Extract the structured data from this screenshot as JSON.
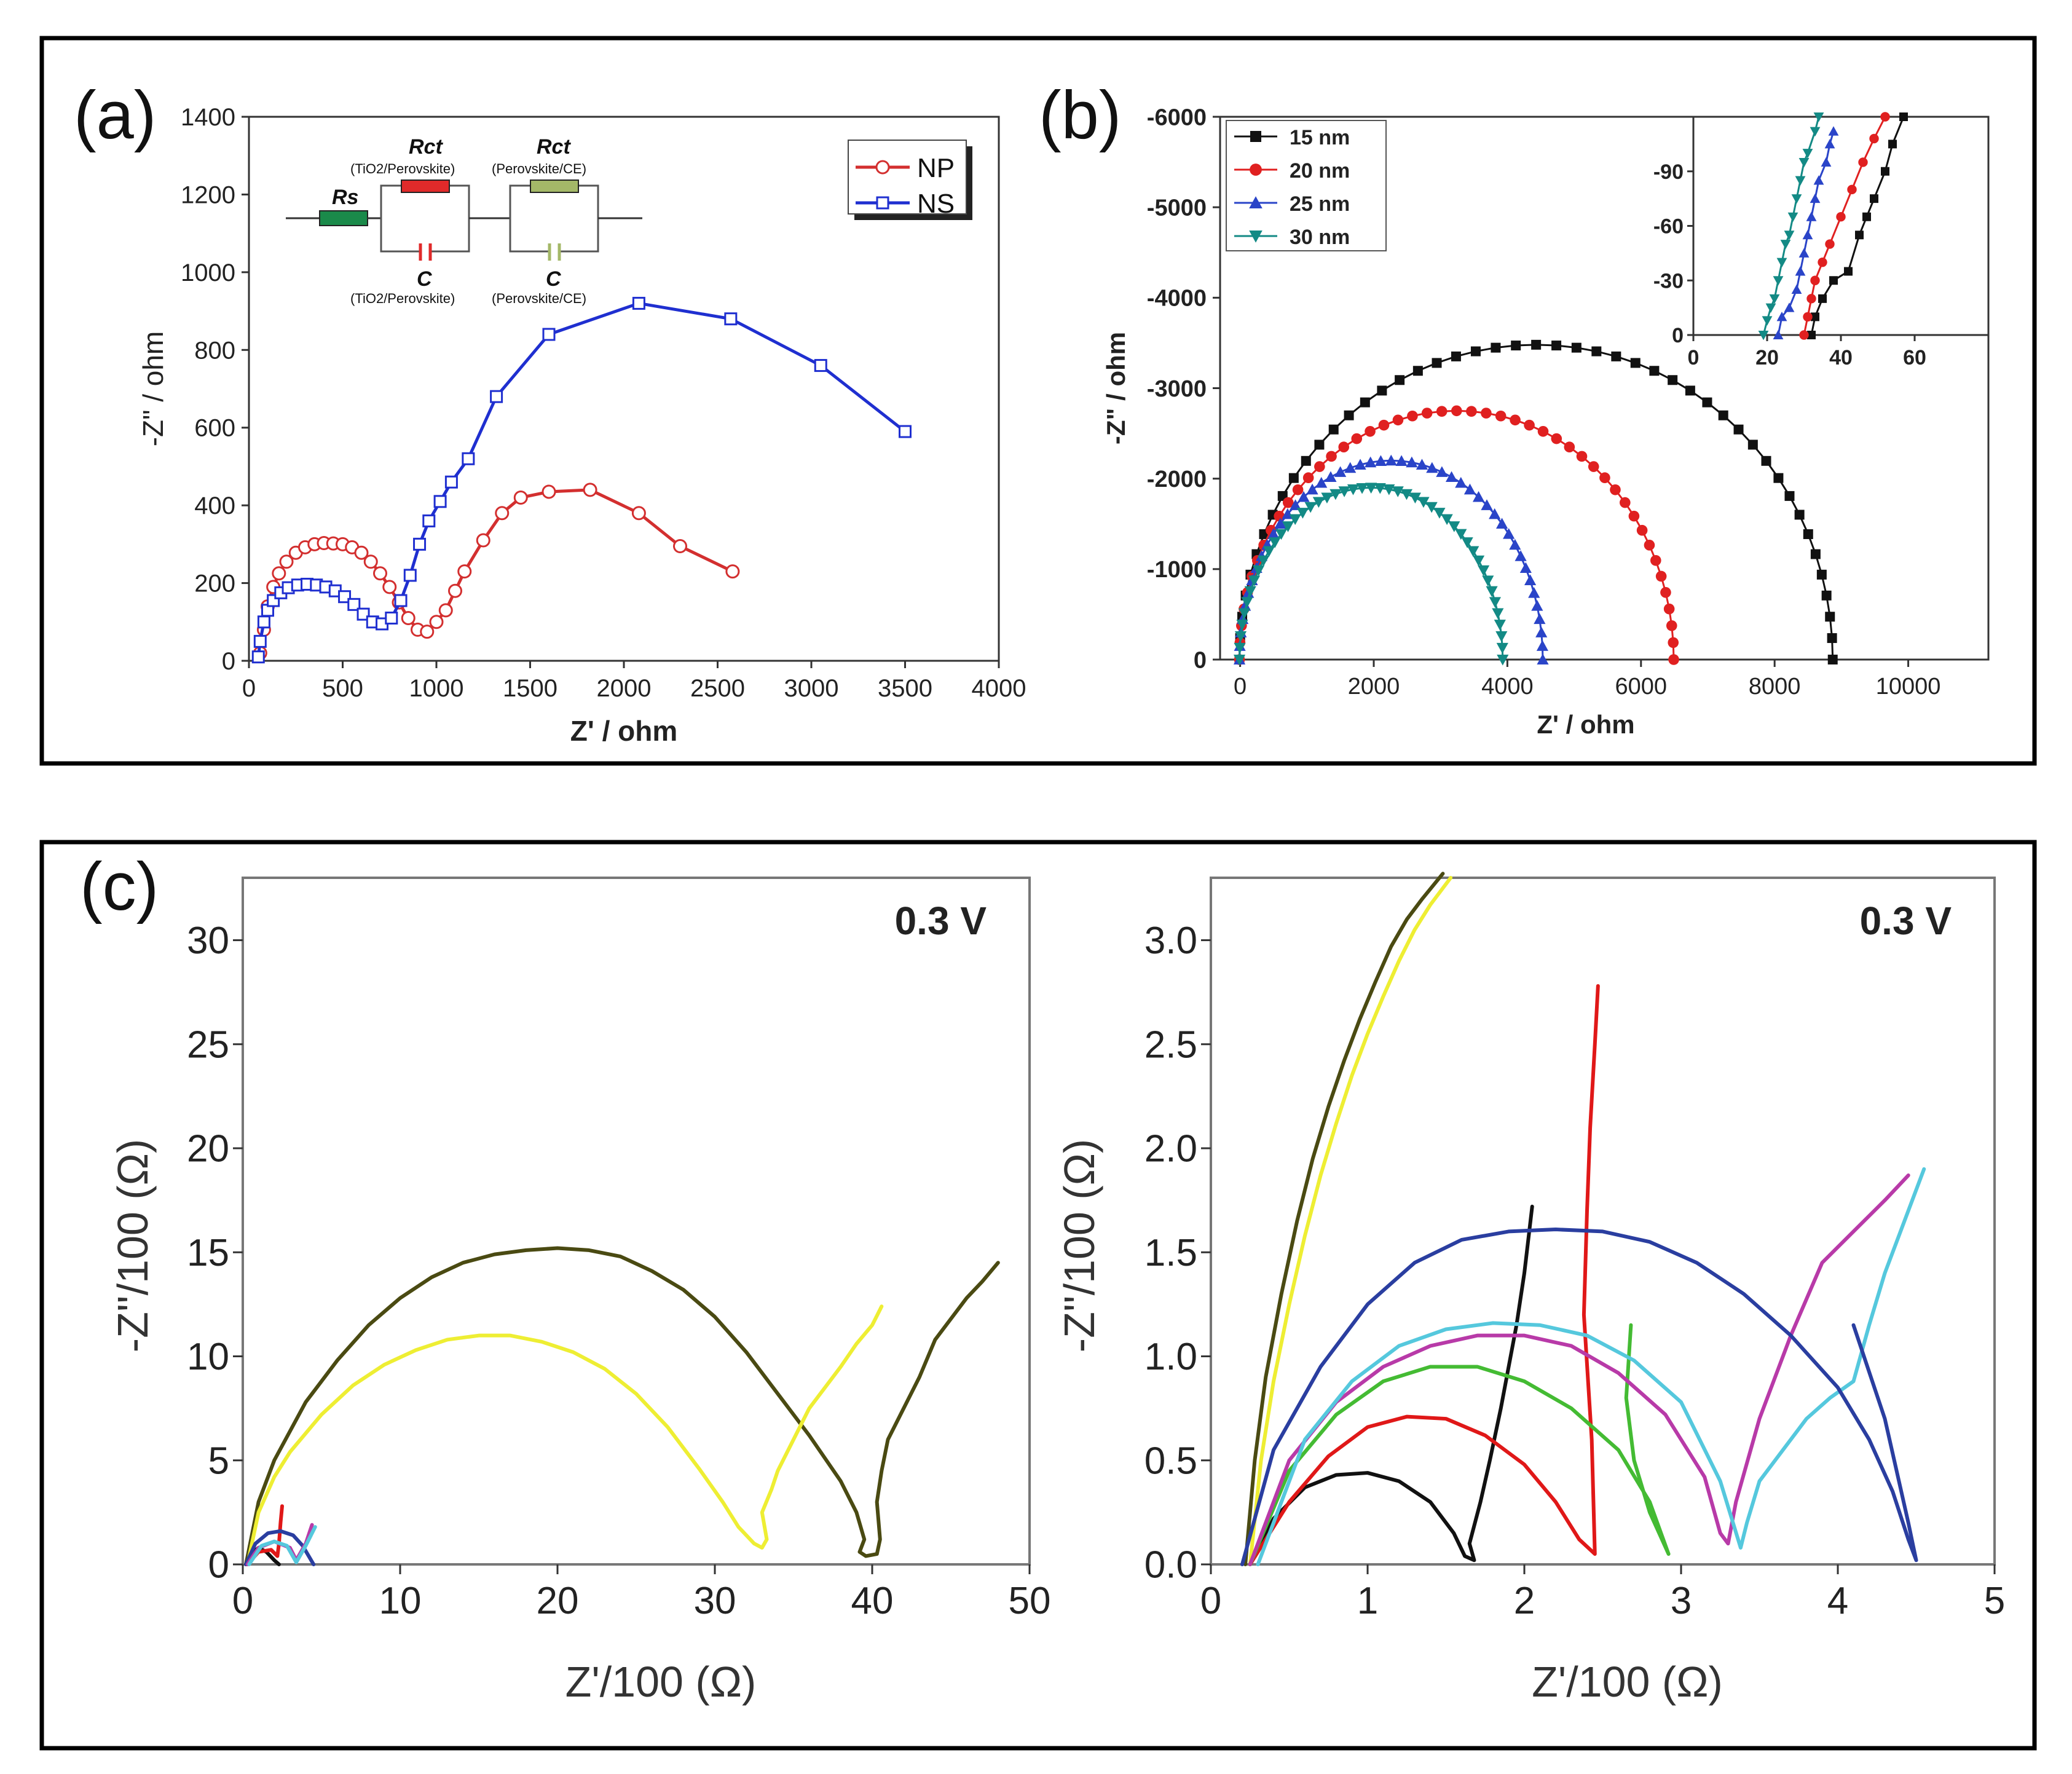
{
  "colors": {
    "np": "#d32f2f",
    "ns": "#1f2fd0",
    "s15": "#111111",
    "s20": "#e02020",
    "s25": "#2a44c8",
    "s30": "#138a85",
    "olive": "#4a4a12",
    "yellow": "#eeee33",
    "black": "#111111",
    "red": "#e01818",
    "green": "#44bb33",
    "magenta": "#b83aa8",
    "cyan": "#55c8dd",
    "navy": "#2a3ea0"
  },
  "panels": {
    "a": {
      "letter": "(a)"
    },
    "b": {
      "letter": "(b)"
    },
    "c": {
      "letter": "(c)"
    }
  },
  "circuit": {
    "rs": "Rs",
    "rct1": "Rct",
    "rct1_sub": "(TiO2/Perovskite)",
    "rct2": "Rct",
    "rct2_sub": "(Perovskite/CE)",
    "c1": "C",
    "c1_sub": "(TiO2/Perovskite)",
    "c2": "C",
    "c2_sub": "(Perovskite/CE)"
  },
  "chart_data": [
    {
      "id": "a",
      "type": "scatter",
      "xlabel": "Z' / ohm",
      "ylabel": "-Z\" / ohm",
      "xlim": [
        0,
        4000
      ],
      "ylim": [
        0,
        1400
      ],
      "xticks": [
        0,
        500,
        1000,
        1500,
        2000,
        2500,
        3000,
        3500,
        4000
      ],
      "yticks": [
        0,
        200,
        400,
        600,
        800,
        1000,
        1200,
        1400
      ],
      "legend": "top-right",
      "series": [
        {
          "name": "NP",
          "color": "#d32f2f",
          "marker": "circle-open",
          "x": [
            60,
            80,
            100,
            130,
            160,
            200,
            250,
            300,
            350,
            400,
            450,
            500,
            550,
            600,
            650,
            700,
            750,
            800,
            850,
            900,
            950,
            1000,
            1050,
            1100,
            1150,
            1250,
            1350,
            1450,
            1600,
            1820,
            2080,
            2300,
            2580
          ],
          "y": [
            20,
            80,
            140,
            190,
            225,
            255,
            278,
            292,
            300,
            303,
            302,
            300,
            292,
            278,
            255,
            225,
            190,
            150,
            110,
            80,
            75,
            100,
            130,
            180,
            230,
            310,
            380,
            420,
            435,
            440,
            380,
            295,
            230
          ]
        },
        {
          "name": "NS",
          "color": "#1f2fd0",
          "marker": "square-open",
          "x": [
            50,
            60,
            80,
            100,
            130,
            170,
            210,
            260,
            310,
            360,
            410,
            460,
            510,
            560,
            610,
            660,
            710,
            760,
            810,
            860,
            910,
            960,
            1020,
            1080,
            1170,
            1320,
            1600,
            2080,
            2570,
            3050,
            3500
          ],
          "y": [
            10,
            50,
            100,
            130,
            155,
            175,
            188,
            195,
            197,
            195,
            190,
            180,
            165,
            145,
            120,
            100,
            95,
            110,
            155,
            220,
            300,
            360,
            410,
            460,
            520,
            680,
            840,
            920,
            880,
            760,
            590
          ]
        }
      ]
    },
    {
      "id": "b",
      "type": "line",
      "xlabel": "Z' / ohm",
      "ylabel": "-Z\" / ohm",
      "xlim": [
        -300,
        11200
      ],
      "ylim": [
        0,
        -6000
      ],
      "xticks": [
        0,
        2000,
        4000,
        6000,
        8000,
        10000
      ],
      "yticks": [
        0,
        -1000,
        -2000,
        -3000,
        -4000,
        -5000,
        -6000
      ],
      "legend": "top-left",
      "series": [
        {
          "name": "15 nm",
          "color": "#111111",
          "marker": "square",
          "center": 4430,
          "radius": 4440,
          "y_peak": -3480
        },
        {
          "name": "20 nm",
          "color": "#e02020",
          "marker": "circle",
          "center": 3240,
          "radius": 3250,
          "y_peak": -2750
        },
        {
          "name": "25 nm",
          "color": "#2a44c8",
          "marker": "triangle-up",
          "center": 2260,
          "radius": 2270,
          "y_peak": -2200
        },
        {
          "name": "30 nm",
          "color": "#138a85",
          "marker": "triangle-down",
          "center": 1960,
          "radius": 1970,
          "y_peak": -1900
        }
      ],
      "inset": {
        "xlim": [
          0,
          80
        ],
        "ylim": [
          0,
          -120
        ],
        "xticks": [
          0,
          20,
          40,
          60
        ],
        "yticks": [
          0,
          -30,
          -60,
          -90
        ],
        "series": [
          {
            "name": "15 nm",
            "x": [
              32,
              33,
              35,
              38,
              42,
              45,
              47,
              49,
              52,
              54,
              57
            ],
            "y": [
              0,
              -10,
              -20,
              -30,
              -35,
              -55,
              -65,
              -75,
              -90,
              -105,
              -120
            ]
          },
          {
            "name": "20 nm",
            "x": [
              30,
              31,
              32,
              33,
              35,
              37,
              40,
              43,
              46,
              49,
              52
            ],
            "y": [
              0,
              -10,
              -20,
              -30,
              -40,
              -50,
              -65,
              -80,
              -95,
              -108,
              -120
            ]
          },
          {
            "name": "25 nm",
            "x": [
              23,
              24,
              26,
              28,
              29,
              30,
              31,
              32,
              33,
              34,
              36,
              37,
              38
            ],
            "y": [
              0,
              -10,
              -15,
              -25,
              -35,
              -45,
              -55,
              -65,
              -75,
              -85,
              -95,
              -105,
              -112
            ]
          },
          {
            "name": "30 nm",
            "x": [
              19,
              20,
              21,
              22,
              23,
              24,
              25,
              26,
              27,
              28,
              29,
              30,
              31,
              33,
              34
            ],
            "y": [
              0,
              -8,
              -15,
              -20,
              -30,
              -40,
              -50,
              -55,
              -65,
              -75,
              -85,
              -95,
              -100,
              -112,
              -120
            ]
          }
        ]
      }
    },
    {
      "id": "c1",
      "type": "line",
      "annotation": "0.3 V",
      "xlabel": "Z'/100 (Ω)",
      "ylabel": "-Z''/100 (Ω)",
      "xlim": [
        0,
        50
      ],
      "ylim": [
        0,
        33
      ],
      "xticks": [
        0,
        10,
        20,
        30,
        40,
        50
      ],
      "xtick_labels": [
        "0",
        "10",
        "20",
        "30",
        "40",
        "50"
      ],
      "yticks": [
        0,
        5,
        10,
        15,
        20,
        25,
        30
      ],
      "series": [
        {
          "name": "olive",
          "color": "#4a4a12",
          "x": [
            0.2,
            1,
            2,
            4,
            6,
            8,
            10,
            12,
            14,
            16,
            18,
            20,
            22,
            24,
            26,
            28,
            30,
            32,
            34,
            36,
            38,
            39,
            39.5,
            39.2,
            39.6,
            40.3,
            40.5,
            40.3,
            40.6,
            41,
            42,
            43,
            44,
            45,
            46,
            47,
            48
          ],
          "y": [
            0,
            3,
            5,
            7.8,
            9.8,
            11.5,
            12.8,
            13.8,
            14.5,
            14.9,
            15.1,
            15.2,
            15.1,
            14.8,
            14.1,
            13.2,
            11.9,
            10.2,
            8.2,
            6.2,
            4.0,
            2.5,
            1.2,
            0.6,
            0.4,
            0.5,
            1.2,
            3.0,
            4.5,
            6,
            7.5,
            9,
            10.8,
            11.8,
            12.8,
            13.6,
            14.5
          ]
        },
        {
          "name": "yellow",
          "color": "#eeee33",
          "x": [
            0.3,
            1,
            2,
            3,
            5,
            7,
            9,
            11,
            13,
            15,
            17,
            19,
            21,
            23,
            25,
            27,
            29,
            30.5,
            31.5,
            32.5,
            33,
            33.3,
            33.0,
            33.6,
            34,
            35,
            36,
            37,
            38,
            39,
            40,
            40.6
          ],
          "y": [
            0,
            2.5,
            4.2,
            5.4,
            7.2,
            8.6,
            9.6,
            10.3,
            10.8,
            11.0,
            11.0,
            10.7,
            10.2,
            9.4,
            8.2,
            6.6,
            4.6,
            3.0,
            1.8,
            1.0,
            0.8,
            1.2,
            2.5,
            3.6,
            4.5,
            6,
            7.5,
            8.5,
            9.5,
            10.6,
            11.5,
            12.4
          ]
        },
        {
          "name": "cluster-black",
          "color": "#111111",
          "x": [
            0.2,
            0.5,
            1,
            1.5,
            2,
            2.3
          ],
          "y": [
            0,
            0.5,
            0.8,
            0.6,
            0.2,
            0
          ]
        },
        {
          "name": "cluster-red",
          "color": "#e01818",
          "x": [
            0.3,
            1,
            1.8,
            2.2,
            2.3,
            2.4,
            2.5
          ],
          "y": [
            0,
            0.6,
            0.7,
            0.4,
            1,
            2,
            2.8
          ]
        },
        {
          "name": "cluster-blue",
          "color": "#2a3ea0",
          "x": [
            0.2,
            0.8,
            1.6,
            2.4,
            3.2,
            3.8,
            4.5
          ],
          "y": [
            0,
            1,
            1.5,
            1.6,
            1.4,
            0.9,
            0
          ]
        },
        {
          "name": "cluster-magenta",
          "color": "#b83aa8",
          "x": [
            0.3,
            1,
            2,
            3,
            3.4,
            4,
            4.4
          ],
          "y": [
            0,
            0.8,
            1.1,
            0.8,
            0.2,
            1,
            1.9
          ]
        },
        {
          "name": "cluster-cyan",
          "color": "#55c8dd",
          "x": [
            0.4,
            1.2,
            2,
            2.8,
            3.4,
            4,
            4.6
          ],
          "y": [
            0,
            0.9,
            1.1,
            0.9,
            0.1,
            0.9,
            1.8
          ]
        }
      ]
    },
    {
      "id": "c2",
      "type": "line",
      "annotation": "0.3 V",
      "xlabel": "Z'/100 (Ω)",
      "ylabel": "-Z''/100 (Ω)",
      "xlim": [
        0,
        5
      ],
      "ylim": [
        0,
        3.3
      ],
      "xticks": [
        0,
        1,
        2,
        3,
        4,
        5
      ],
      "yticks": [
        0,
        0.5,
        1.0,
        1.5,
        2.0,
        2.5,
        3.0
      ],
      "ytick_labels": [
        "0.0",
        "0.5",
        "1.0",
        "1.5",
        "2.0",
        "2.5",
        "3.0"
      ],
      "series": [
        {
          "name": "olive",
          "color": "#4a4a12",
          "x": [
            0.22,
            0.28,
            0.35,
            0.45,
            0.55,
            0.65,
            0.75,
            0.85,
            0.95,
            1.05,
            1.15,
            1.25,
            1.35,
            1.48
          ],
          "y": [
            0,
            0.5,
            0.9,
            1.3,
            1.65,
            1.95,
            2.2,
            2.42,
            2.62,
            2.8,
            2.97,
            3.1,
            3.2,
            3.32
          ]
        },
        {
          "name": "yellow",
          "color": "#eeee33",
          "x": [
            0.25,
            0.32,
            0.4,
            0.5,
            0.6,
            0.7,
            0.8,
            0.9,
            1.0,
            1.1,
            1.2,
            1.3,
            1.4,
            1.53
          ],
          "y": [
            0,
            0.5,
            0.88,
            1.25,
            1.58,
            1.87,
            2.12,
            2.35,
            2.55,
            2.73,
            2.9,
            3.05,
            3.17,
            3.3
          ]
        },
        {
          "name": "black",
          "color": "#111111",
          "x": [
            0.25,
            0.4,
            0.6,
            0.8,
            1.0,
            1.2,
            1.4,
            1.55,
            1.62,
            1.68,
            1.65,
            1.72,
            1.78,
            1.85,
            1.9,
            1.95,
            2.0,
            2.05
          ],
          "y": [
            0,
            0.22,
            0.37,
            0.43,
            0.44,
            0.4,
            0.3,
            0.15,
            0.04,
            0.02,
            0.1,
            0.3,
            0.5,
            0.75,
            0.95,
            1.15,
            1.4,
            1.72
          ]
        },
        {
          "name": "red",
          "color": "#e01818",
          "x": [
            0.25,
            0.5,
            0.75,
            1.0,
            1.25,
            1.5,
            1.75,
            2.0,
            2.2,
            2.35,
            2.45,
            2.43,
            2.38,
            2.4,
            2.42,
            2.45,
            2.47
          ],
          "y": [
            0,
            0.3,
            0.52,
            0.66,
            0.71,
            0.7,
            0.62,
            0.48,
            0.3,
            0.12,
            0.05,
            0.6,
            1.2,
            1.7,
            2.1,
            2.5,
            2.78
          ]
        },
        {
          "name": "green",
          "color": "#44bb33",
          "x": [
            0.25,
            0.5,
            0.8,
            1.1,
            1.4,
            1.7,
            2.0,
            2.3,
            2.6,
            2.8,
            2.92,
            2.8,
            2.7,
            2.65,
            2.68
          ],
          "y": [
            0,
            0.45,
            0.72,
            0.88,
            0.95,
            0.95,
            0.88,
            0.75,
            0.55,
            0.3,
            0.05,
            0.25,
            0.5,
            0.8,
            1.15
          ]
        },
        {
          "name": "magenta",
          "color": "#b83aa8",
          "x": [
            0.25,
            0.5,
            0.8,
            1.1,
            1.4,
            1.7,
            2.0,
            2.3,
            2.6,
            2.9,
            3.15,
            3.25,
            3.3,
            3.35,
            3.5,
            3.7,
            3.9,
            4.1,
            4.3,
            4.45
          ],
          "y": [
            0,
            0.5,
            0.78,
            0.95,
            1.05,
            1.1,
            1.1,
            1.05,
            0.92,
            0.72,
            0.42,
            0.15,
            0.1,
            0.3,
            0.7,
            1.1,
            1.45,
            1.6,
            1.75,
            1.87
          ]
        },
        {
          "name": "cyan",
          "color": "#55c8dd",
          "x": [
            0.3,
            0.6,
            0.9,
            1.2,
            1.5,
            1.8,
            2.1,
            2.4,
            2.7,
            3.0,
            3.25,
            3.38,
            3.42,
            3.5,
            3.65,
            3.8,
            3.95,
            4.1,
            4.2,
            4.3,
            4.45,
            4.55
          ],
          "y": [
            0,
            0.6,
            0.88,
            1.05,
            1.13,
            1.16,
            1.15,
            1.1,
            0.98,
            0.78,
            0.4,
            0.08,
            0.2,
            0.4,
            0.55,
            0.7,
            0.8,
            0.88,
            1.15,
            1.4,
            1.7,
            1.9
          ]
        },
        {
          "name": "navy",
          "color": "#2a3ea0",
          "x": [
            0.2,
            0.4,
            0.7,
            1.0,
            1.3,
            1.6,
            1.9,
            2.2,
            2.5,
            2.8,
            3.1,
            3.4,
            3.7,
            4.0,
            4.2,
            4.35,
            4.45,
            4.5,
            4.45,
            4.3,
            4.1
          ],
          "y": [
            0,
            0.55,
            0.95,
            1.25,
            1.45,
            1.56,
            1.6,
            1.61,
            1.6,
            1.55,
            1.45,
            1.3,
            1.1,
            0.85,
            0.6,
            0.35,
            0.12,
            0.02,
            0.2,
            0.7,
            1.15
          ]
        }
      ]
    }
  ]
}
